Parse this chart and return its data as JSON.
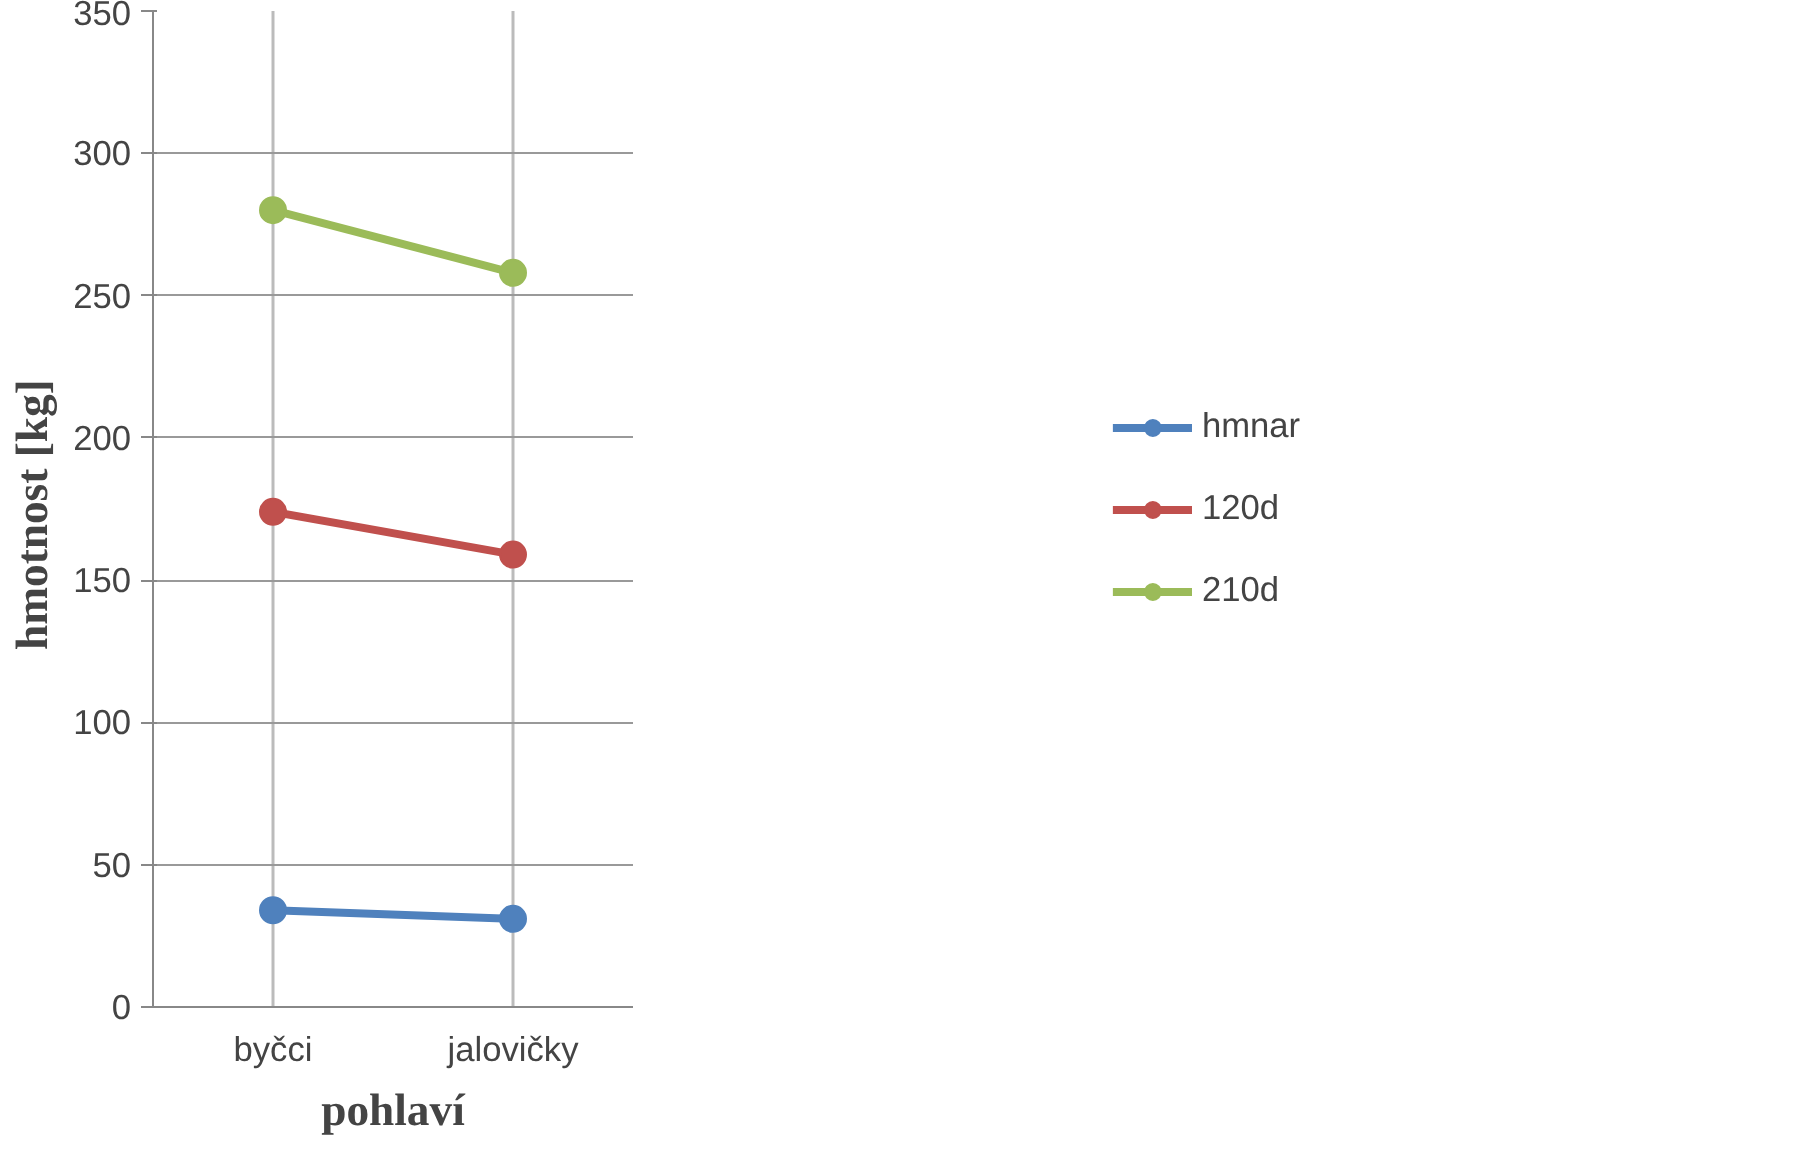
{
  "chart_data": {
    "type": "line",
    "xlabel": "pohlaví",
    "ylabel": "hmotnost  [kg]",
    "categories": [
      "byčci",
      "jalovičky"
    ],
    "series": [
      {
        "name": "hmnar",
        "color": "#4f81bd",
        "values": [
          34,
          31
        ]
      },
      {
        "name": "120d",
        "color": "#c0504d",
        "values": [
          174,
          159
        ]
      },
      {
        "name": "210d",
        "color": "#9bbb59",
        "values": [
          280,
          258
        ]
      }
    ],
    "ylim": [
      0,
      350
    ],
    "yticks": [
      0,
      50,
      100,
      150,
      200,
      250,
      300,
      350
    ],
    "grid": true,
    "legend": "right",
    "marker": "circle",
    "line_style": "solid"
  }
}
